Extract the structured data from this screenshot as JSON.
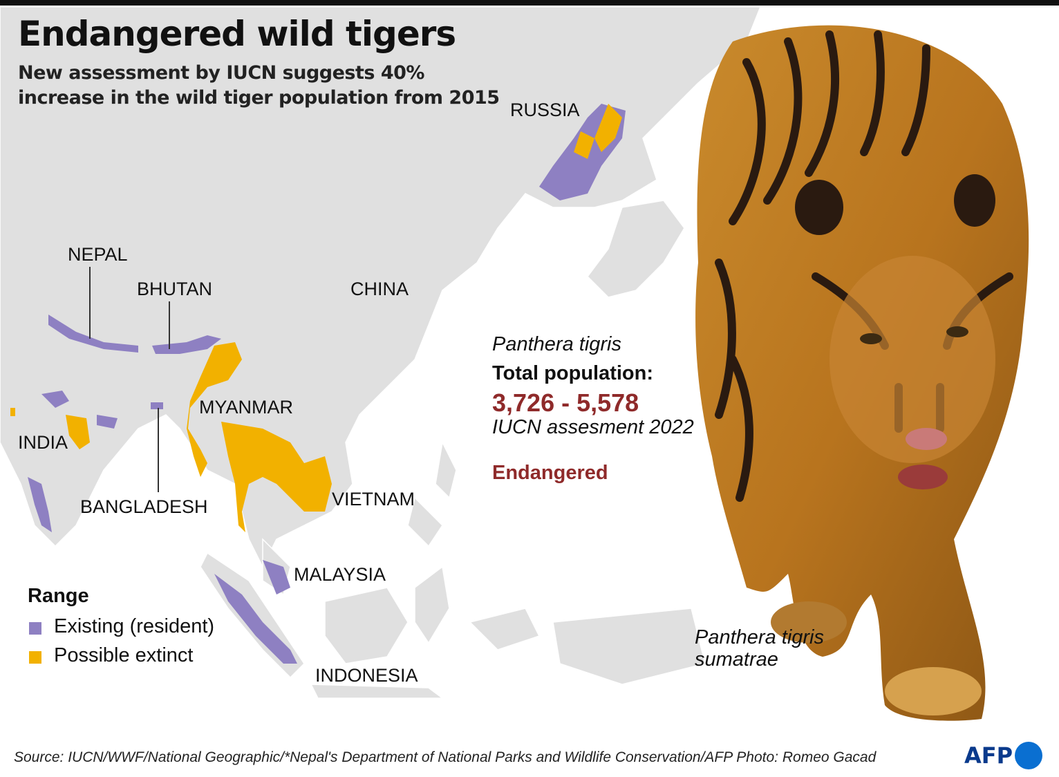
{
  "header": {
    "title": "Endangered wild tigers",
    "subtitle": "New assessment by IUCN suggests 40% increase in the wild tiger population from 2015"
  },
  "map": {
    "labels": [
      "RUSSIA",
      "NEPAL",
      "BHUTAN",
      "CHINA",
      "MYANMAR",
      "INDIA",
      "BANGLADESH",
      "VIETNAM",
      "MALAYSIA",
      "INDONESIA"
    ]
  },
  "legend": {
    "title": "Range",
    "items": [
      {
        "label": "Existing (resident)",
        "color": "#8e80c2"
      },
      {
        "label": "Possible extinct",
        "color": "#f2b100"
      }
    ]
  },
  "info": {
    "species": "Panthera tigris",
    "population_label": "Total population:",
    "population": "3,726 - 5,578",
    "assessment": "IUCN assesment 2022",
    "status": "Endangered"
  },
  "photo": {
    "caption": "Panthera tigris sumatrae"
  },
  "footer": {
    "source": "Source: IUCN/WWF/National Geographic/*Nepal's Department of National Parks and Wildlife Conservation/AFP Photo: Romeo Gacad",
    "logo": "AFP"
  }
}
